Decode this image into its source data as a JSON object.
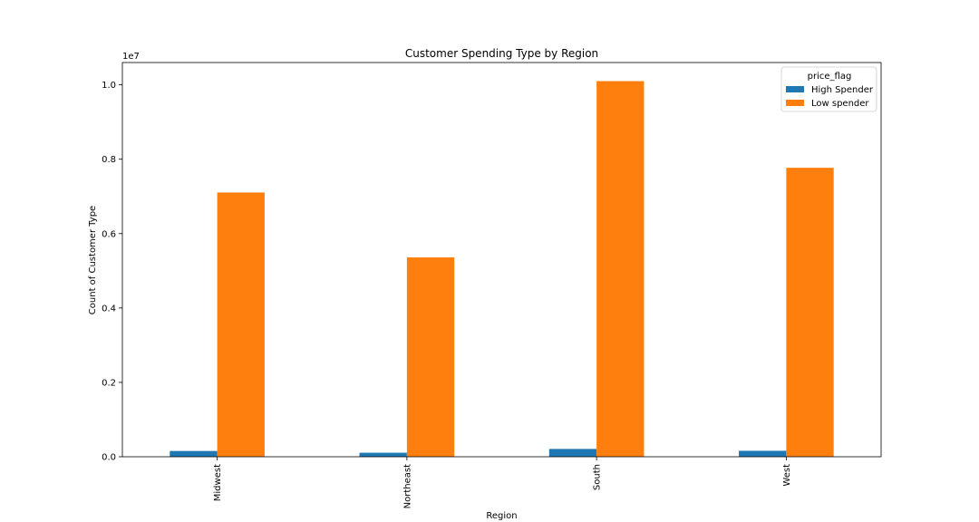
{
  "chart_data": {
    "type": "bar",
    "title": "Customer Spending Type by Region",
    "xlabel": "Region",
    "ylabel": "Count of Customer Type",
    "y_scale_label": "1e7",
    "categories": [
      "Midwest",
      "Northeast",
      "South",
      "West"
    ],
    "series": [
      {
        "name": "High Spender",
        "color": "#1f77b4",
        "values": [
          155000,
          108000,
          210000,
          160000
        ]
      },
      {
        "name": "Low spender",
        "color": "#ff7f0e",
        "values": [
          7105000,
          5360000,
          10100000,
          7770000
        ]
      }
    ],
    "ylim": [
      0,
      10600000
    ],
    "yticks": [
      {
        "value": 0,
        "label": "0.0"
      },
      {
        "value": 2000000,
        "label": "0.2"
      },
      {
        "value": 4000000,
        "label": "0.4"
      },
      {
        "value": 6000000,
        "label": "0.6"
      },
      {
        "value": 8000000,
        "label": "0.8"
      },
      {
        "value": 10000000,
        "label": "1.0"
      }
    ],
    "legend": {
      "title": "price_flag",
      "position": "top-right"
    },
    "grid": false
  }
}
